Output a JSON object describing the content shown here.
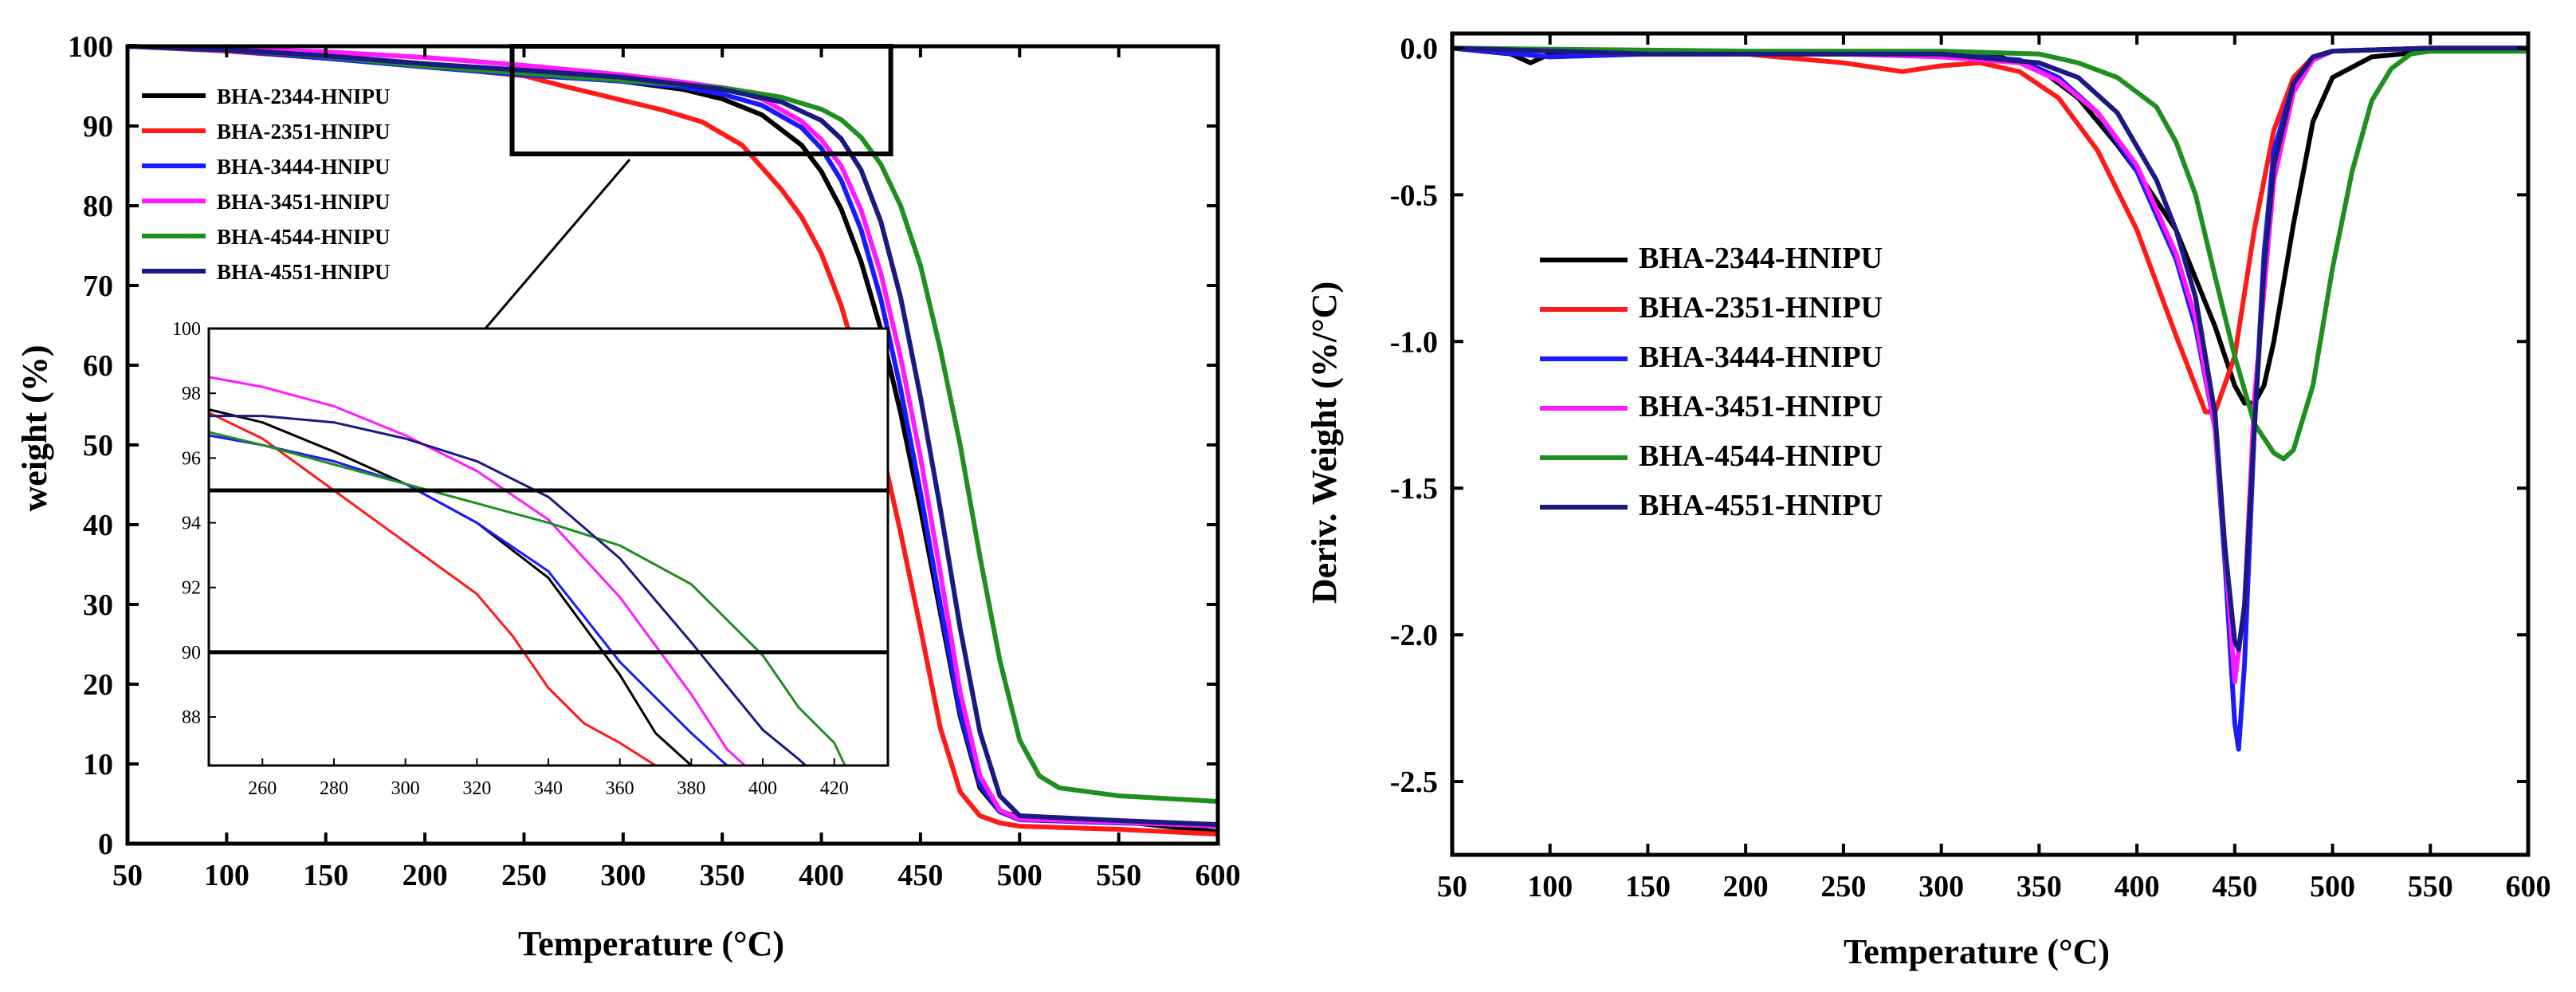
{
  "series_meta": [
    {
      "name": "BHA-2344-HNIPU",
      "color": "#000000"
    },
    {
      "name": "BHA-2351-HNIPU",
      "color": "#ff1a1a"
    },
    {
      "name": "BHA-3444-HNIPU",
      "color": "#1a1aff"
    },
    {
      "name": "BHA-3451-HNIPU",
      "color": "#ff1aff"
    },
    {
      "name": "BHA-4544-HNIPU",
      "color": "#1f8f1f"
    },
    {
      "name": "BHA-4551-HNIPU",
      "color": "#1a1a80"
    }
  ],
  "chart_data": [
    {
      "type": "line",
      "xlabel": "Temperature (°C)",
      "ylabel": "weight (%)",
      "xlim": [
        50,
        600
      ],
      "ylim": [
        0,
        100
      ],
      "xticks": [
        50,
        100,
        150,
        200,
        250,
        300,
        350,
        400,
        450,
        500,
        550,
        600
      ],
      "yticks": [
        0,
        10,
        20,
        30,
        40,
        50,
        60,
        70,
        80,
        90,
        100
      ],
      "zoom_box": {
        "x": [
          244,
          435
        ],
        "y": [
          86.5,
          100
        ]
      },
      "series": [
        {
          "name": "BHA-2344-HNIPU",
          "x": [
            50,
            100,
            150,
            200,
            250,
            300,
            330,
            350,
            370,
            390,
            400,
            410,
            420,
            430,
            440,
            450,
            460,
            470,
            480,
            490,
            500,
            550,
            600
          ],
          "y": [
            100,
            99.6,
            98.8,
            97.8,
            96.8,
            95.6,
            94.6,
            93.4,
            91.4,
            87.6,
            84.3,
            79.6,
            73,
            64.5,
            54,
            42,
            29,
            16,
            7,
            4,
            3.4,
            2.8,
            1.5
          ]
        },
        {
          "name": "BHA-2351-HNIPU",
          "x": [
            50,
            100,
            150,
            200,
            250,
            270,
            300,
            320,
            340,
            360,
            380,
            390,
            400,
            410,
            420,
            430,
            440,
            450,
            460,
            470,
            480,
            490,
            500,
            550,
            600
          ],
          "y": [
            100,
            99.4,
            98.5,
            97.5,
            96.3,
            95,
            93.2,
            92,
            90.5,
            87.6,
            82,
            78.6,
            74,
            67.5,
            59,
            50,
            39,
            27,
            14.5,
            6.5,
            3.5,
            2.6,
            2.2,
            1.8,
            1.2
          ]
        },
        {
          "name": "BHA-3444-HNIPU",
          "x": [
            50,
            100,
            150,
            200,
            250,
            300,
            330,
            350,
            370,
            390,
            400,
            410,
            420,
            430,
            440,
            450,
            460,
            470,
            480,
            490,
            500,
            550,
            600
          ],
          "y": [
            100,
            99.5,
            98.5,
            97.4,
            96.4,
            95.6,
            94.9,
            94,
            92.6,
            89.8,
            87.2,
            83.2,
            77,
            68.3,
            57,
            44,
            30,
            16.5,
            7.5,
            4,
            3,
            2.6,
            2.3
          ]
        },
        {
          "name": "BHA-3451-HNIPU",
          "x": [
            50,
            100,
            150,
            200,
            250,
            300,
            330,
            350,
            370,
            390,
            400,
            410,
            420,
            430,
            440,
            450,
            460,
            470,
            480,
            490,
            500,
            550,
            600
          ],
          "y": [
            100,
            99.7,
            99.3,
            98.6,
            97.6,
            96.4,
            95.5,
            94.8,
            93.4,
            90.6,
            88.3,
            85,
            79.5,
            71.5,
            61,
            48.5,
            34,
            19,
            8.5,
            4.2,
            3.1,
            2.7,
            2.2
          ]
        },
        {
          "name": "BHA-4544-HNIPU",
          "x": [
            50,
            100,
            150,
            200,
            250,
            300,
            350,
            380,
            400,
            410,
            420,
            430,
            440,
            450,
            460,
            470,
            480,
            490,
            500,
            510,
            520,
            550,
            600
          ],
          "y": [
            100,
            99.6,
            98.7,
            97.5,
            96.6,
            95.7,
            94.8,
            93.6,
            92.1,
            90.8,
            88.6,
            85.2,
            80,
            72.5,
            62,
            50,
            36,
            23,
            13,
            8.5,
            7,
            6,
            5.3
          ]
        },
        {
          "name": "BHA-4551-HNIPU",
          "x": [
            50,
            100,
            150,
            200,
            250,
            300,
            350,
            380,
            400,
            410,
            420,
            430,
            440,
            450,
            460,
            470,
            480,
            490,
            500,
            550,
            600
          ],
          "y": [
            100,
            99.6,
            98.8,
            97.8,
            97,
            96.1,
            94.6,
            93,
            90.7,
            88.4,
            84.5,
            78,
            68.5,
            56,
            42,
            27,
            14,
            6,
            3.5,
            2.9,
            2.4
          ]
        }
      ]
    },
    {
      "type": "line",
      "role": "inset",
      "xlim": [
        245,
        435
      ],
      "ylim": [
        86.5,
        100
      ],
      "xticks": [
        260,
        280,
        300,
        320,
        340,
        360,
        380,
        400,
        420
      ],
      "yticks": [
        88,
        90,
        92,
        94,
        96,
        98,
        100
      ],
      "hlines": [
        95,
        90
      ],
      "series": [
        {
          "name": "BHA-2344-HNIPU",
          "x": [
            245,
            260,
            280,
            300,
            320,
            340,
            360,
            370,
            380
          ],
          "y": [
            97.5,
            97.1,
            96.2,
            95.2,
            94.0,
            92.3,
            89.3,
            87.5,
            86.5
          ]
        },
        {
          "name": "BHA-2351-HNIPU",
          "x": [
            245,
            260,
            280,
            300,
            320,
            330,
            340,
            350,
            360,
            370
          ],
          "y": [
            97.4,
            96.6,
            95.0,
            93.4,
            91.8,
            90.5,
            88.9,
            87.8,
            87.2,
            86.5
          ]
        },
        {
          "name": "BHA-3444-HNIPU",
          "x": [
            245,
            260,
            280,
            300,
            320,
            340,
            360,
            380,
            390
          ],
          "y": [
            96.7,
            96.4,
            95.9,
            95.2,
            94.0,
            92.5,
            89.7,
            87.5,
            86.5
          ]
        },
        {
          "name": "BHA-3451-HNIPU",
          "x": [
            245,
            260,
            280,
            300,
            320,
            340,
            360,
            380,
            390,
            395
          ],
          "y": [
            98.5,
            98.2,
            97.6,
            96.7,
            95.6,
            94.1,
            91.7,
            88.7,
            87.0,
            86.5
          ]
        },
        {
          "name": "BHA-4544-HNIPU",
          "x": [
            245,
            260,
            280,
            300,
            320,
            340,
            360,
            380,
            400,
            410,
            420,
            423
          ],
          "y": [
            96.8,
            96.4,
            95.8,
            95.2,
            94.6,
            94.0,
            93.3,
            92.1,
            89.9,
            88.3,
            87.2,
            86.5
          ]
        },
        {
          "name": "BHA-4551-HNIPU",
          "x": [
            245,
            260,
            280,
            300,
            320,
            340,
            360,
            380,
            400,
            410,
            412
          ],
          "y": [
            97.3,
            97.3,
            97.1,
            96.6,
            95.9,
            94.8,
            92.9,
            90.3,
            87.6,
            86.7,
            86.5
          ]
        }
      ]
    },
    {
      "type": "line",
      "xlabel": "Temperature (°C)",
      "ylabel": "Deriv. Weight (%/°C)",
      "xlim": [
        50,
        600
      ],
      "ylim": [
        -2.75,
        0.05
      ],
      "xticks": [
        50,
        100,
        150,
        200,
        250,
        300,
        350,
        400,
        450,
        500,
        550,
        600
      ],
      "yticks": [
        0.0,
        -0.5,
        -1.0,
        -1.5,
        -2.0,
        -2.5
      ],
      "ytick_labels": [
        "0.0",
        "-0.5",
        "-1.0",
        "-1.5",
        "-2.0",
        "-2.5"
      ],
      "series": [
        {
          "name": "BHA-2344-HNIPU",
          "x": [
            50,
            80,
            90,
            100,
            150,
            200,
            250,
            300,
            330,
            350,
            370,
            390,
            400,
            420,
            440,
            450,
            455,
            460,
            465,
            470,
            480,
            490,
            500,
            520,
            550,
            600
          ],
          "y": [
            0,
            -0.02,
            -0.05,
            -0.02,
            -0.02,
            -0.02,
            -0.02,
            -0.02,
            -0.03,
            -0.07,
            -0.17,
            -0.33,
            -0.42,
            -0.62,
            -0.95,
            -1.15,
            -1.21,
            -1.21,
            -1.15,
            -1.0,
            -0.6,
            -0.25,
            -0.1,
            -0.03,
            -0.01,
            -0.01
          ]
        },
        {
          "name": "BHA-2351-HNIPU",
          "x": [
            50,
            150,
            200,
            250,
            270,
            280,
            300,
            320,
            340,
            360,
            380,
            400,
            420,
            435,
            440,
            450,
            460,
            470,
            480,
            490,
            500,
            550,
            600
          ],
          "y": [
            0,
            -0.02,
            -0.02,
            -0.05,
            -0.07,
            -0.08,
            -0.06,
            -0.05,
            -0.08,
            -0.17,
            -0.35,
            -0.62,
            -0.98,
            -1.24,
            -1.24,
            -1.05,
            -0.62,
            -0.28,
            -0.1,
            -0.03,
            -0.01,
            0,
            0
          ]
        },
        {
          "name": "BHA-3444-HNIPU",
          "x": [
            50,
            100,
            150,
            200,
            250,
            300,
            340,
            360,
            380,
            400,
            420,
            430,
            440,
            445,
            450,
            452,
            455,
            460,
            465,
            470,
            480,
            490,
            500,
            550,
            600
          ],
          "y": [
            0,
            -0.03,
            -0.02,
            -0.02,
            -0.02,
            -0.02,
            -0.04,
            -0.1,
            -0.22,
            -0.42,
            -0.72,
            -0.95,
            -1.3,
            -1.75,
            -2.3,
            -2.39,
            -2.1,
            -1.3,
            -0.7,
            -0.35,
            -0.12,
            -0.04,
            -0.01,
            0,
            0
          ]
        },
        {
          "name": "BHA-3451-HNIPU",
          "x": [
            50,
            150,
            200,
            250,
            300,
            340,
            360,
            380,
            400,
            420,
            430,
            440,
            445,
            450,
            455,
            460,
            470,
            480,
            490,
            500,
            550,
            600
          ],
          "y": [
            0,
            -0.02,
            -0.02,
            -0.02,
            -0.03,
            -0.05,
            -0.11,
            -0.22,
            -0.4,
            -0.7,
            -0.92,
            -1.3,
            -1.7,
            -2.16,
            -1.9,
            -1.2,
            -0.45,
            -0.15,
            -0.04,
            -0.01,
            0,
            0
          ]
        },
        {
          "name": "BHA-4544-HNIPU",
          "x": [
            50,
            200,
            300,
            350,
            370,
            390,
            400,
            410,
            420,
            430,
            440,
            450,
            460,
            470,
            475,
            480,
            490,
            500,
            510,
            520,
            530,
            540,
            550,
            600
          ],
          "y": [
            0,
            -0.01,
            -0.01,
            -0.02,
            -0.05,
            -0.1,
            -0.15,
            -0.2,
            -0.32,
            -0.5,
            -0.78,
            -1.05,
            -1.28,
            -1.38,
            -1.4,
            -1.37,
            -1.15,
            -0.75,
            -0.42,
            -0.18,
            -0.07,
            -0.02,
            -0.01,
            -0.01
          ]
        },
        {
          "name": "BHA-4551-HNIPU",
          "x": [
            50,
            150,
            200,
            250,
            300,
            350,
            370,
            390,
            410,
            420,
            430,
            440,
            445,
            450,
            452,
            455,
            460,
            465,
            470,
            480,
            490,
            500,
            550,
            600
          ],
          "y": [
            0,
            -0.02,
            -0.02,
            -0.02,
            -0.02,
            -0.05,
            -0.1,
            -0.22,
            -0.45,
            -0.62,
            -0.85,
            -1.25,
            -1.7,
            -2.02,
            -2.05,
            -1.9,
            -1.3,
            -0.75,
            -0.4,
            -0.12,
            -0.03,
            -0.01,
            0,
            0
          ]
        }
      ]
    }
  ]
}
